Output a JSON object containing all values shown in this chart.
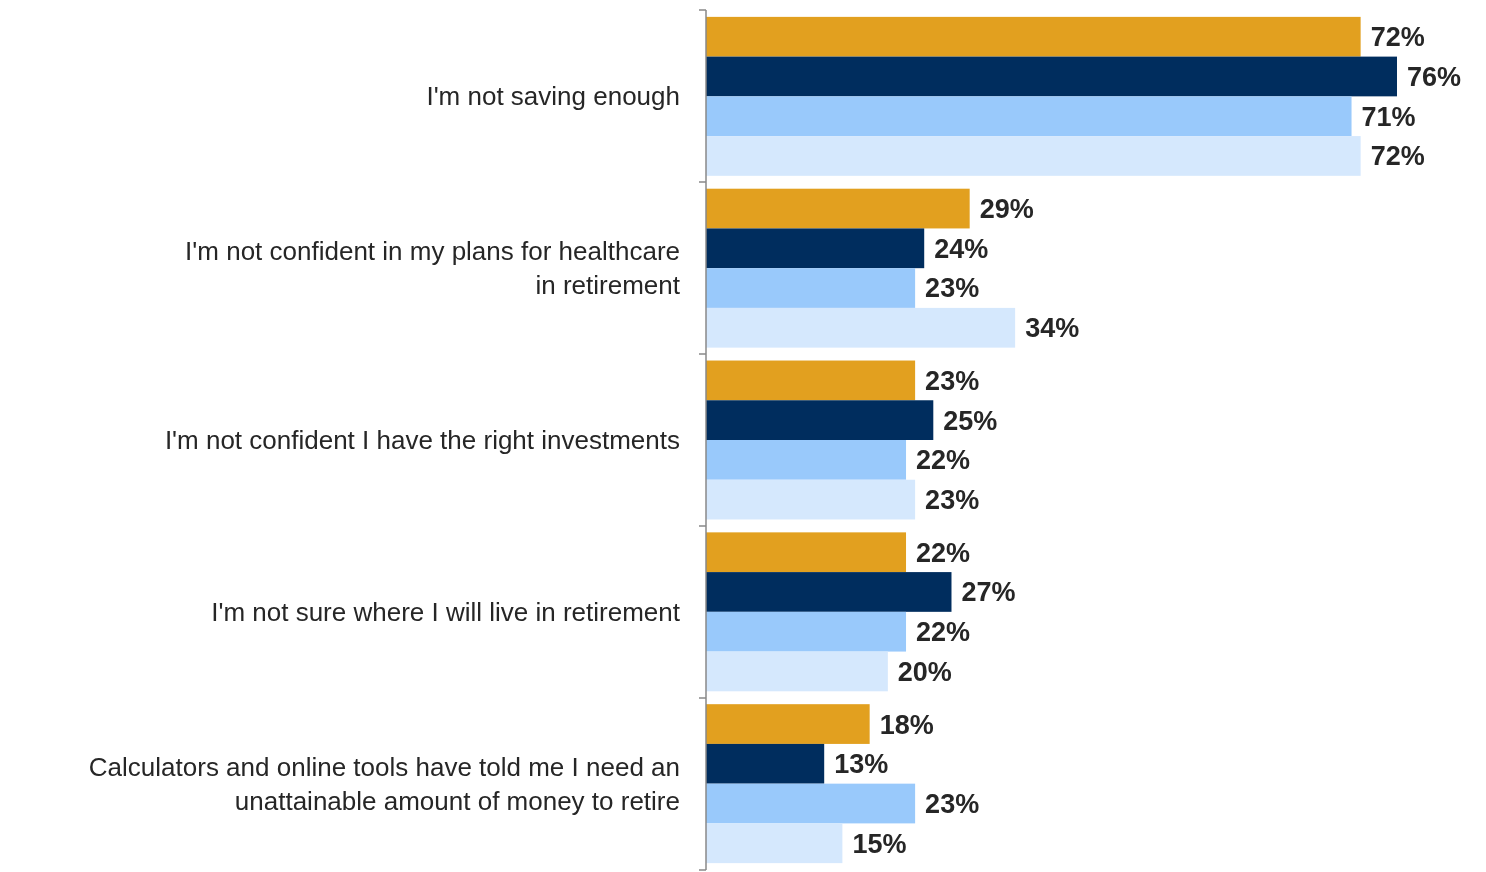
{
  "chart_data": {
    "type": "bar",
    "orientation": "horizontal",
    "categories": [
      "I'm not saving enough",
      "I'm not confident in my plans for healthcare\nin retirement",
      "I'm not confident I have the right investments",
      "I'm not sure where I will live in retirement",
      "Calculators and online tools have told me I need an\nunattainable amount of money to retire"
    ],
    "series": [
      {
        "color": "#e2a01f",
        "values": [
          72,
          29,
          23,
          22,
          18
        ],
        "value_labels": [
          "72%",
          "29%",
          "23%",
          "22%",
          "18%"
        ]
      },
      {
        "color": "#002d5e",
        "values": [
          76,
          24,
          25,
          27,
          13
        ],
        "value_labels": [
          "76%",
          "24%",
          "25%",
          "27%",
          "13%"
        ]
      },
      {
        "color": "#99c9fb",
        "values": [
          71,
          23,
          22,
          22,
          23
        ],
        "value_labels": [
          "71%",
          "23%",
          "22%",
          "22%",
          "23%"
        ]
      },
      {
        "color": "#d5e8fd",
        "values": [
          72,
          34,
          23,
          20,
          15
        ],
        "value_labels": [
          "72%",
          "34%",
          "23%",
          "20%",
          "15%"
        ]
      }
    ]
  }
}
